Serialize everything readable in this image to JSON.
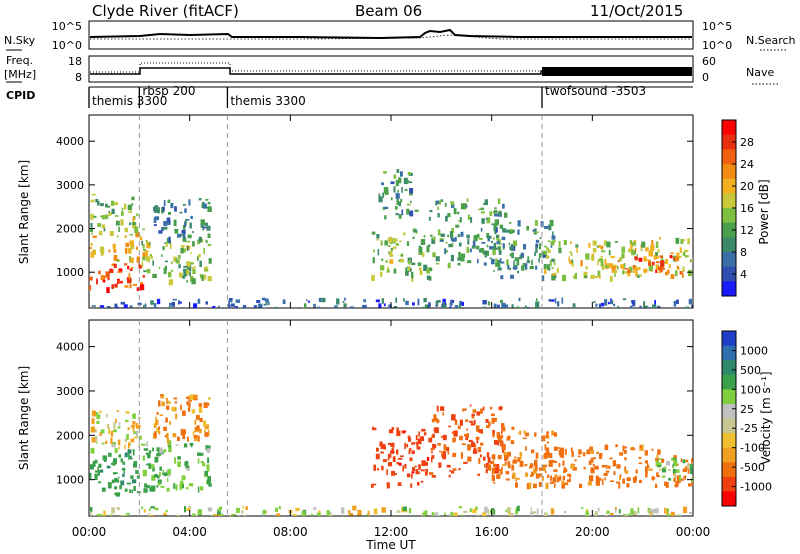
{
  "header": {
    "station": "Clyde River (fitACF)",
    "beam": "Beam 06",
    "date": "11/Oct/2015"
  },
  "summary": {
    "nsky_label": "N.Sky",
    "nsky_ticks": [
      "10^5",
      "10^0"
    ],
    "nsearch_label": "N.Search",
    "nsearch_ticks": [
      "10^5",
      "10^0"
    ],
    "freq_label_1": "Freq.",
    "freq_label_2": "[MHz]",
    "freq_ticks": [
      "18",
      "8"
    ],
    "nave_label": "Nave",
    "nave_ticks": [
      "60",
      "0"
    ],
    "cpid_label": "CPID"
  },
  "cpid_segments": [
    {
      "label": "themis 3300",
      "start": 0,
      "end": 2
    },
    {
      "label": "rbsp 200",
      "start": 2,
      "end": 5.5
    },
    {
      "label": "themis 3300",
      "start": 5.5,
      "end": 18
    },
    {
      "label": "twofsound -3503",
      "start": 18,
      "end": 24
    }
  ],
  "chart_data": [
    {
      "type": "heatmap",
      "name": "power-panel",
      "xlabel": "",
      "ylabel": "Slant Range [km]",
      "xlim": [
        0,
        24
      ],
      "ylim": [
        180,
        4600
      ],
      "yticks": [
        1000,
        2000,
        3000,
        4000
      ],
      "colorbar": {
        "label": "Power [dB]",
        "range": [
          0,
          32
        ],
        "ticks": [
          "4",
          "8",
          "12",
          "16",
          "20",
          "24",
          "28"
        ],
        "colors": [
          "#1a1aff",
          "#2e4fb0",
          "#3a6fa8",
          "#3d8a6a",
          "#4aa04a",
          "#7fbf3f",
          "#c8c83a",
          "#f0b020",
          "#f08a10",
          "#f06010",
          "#e83010",
          "#ff0000"
        ]
      },
      "regions": [
        {
          "x0": 0.0,
          "x1": 2.2,
          "y0": 650,
          "y1": 1300,
          "value": 27
        },
        {
          "x0": 0.0,
          "x1": 2.3,
          "y0": 1300,
          "y1": 2000,
          "value": 19
        },
        {
          "x0": 0.0,
          "x1": 2.0,
          "y0": 2000,
          "y1": 2800,
          "value": 14
        },
        {
          "x0": 2.0,
          "x1": 4.8,
          "y0": 800,
          "y1": 1800,
          "value": 14
        },
        {
          "x0": 2.5,
          "x1": 4.8,
          "y0": 1800,
          "y1": 2700,
          "value": 8
        },
        {
          "x0": 11.2,
          "x1": 13.5,
          "y0": 900,
          "y1": 2000,
          "value": 14
        },
        {
          "x0": 11.5,
          "x1": 13.0,
          "y0": 2300,
          "y1": 3400,
          "value": 9
        },
        {
          "x0": 13.5,
          "x1": 16.5,
          "y0": 1200,
          "y1": 2700,
          "value": 11
        },
        {
          "x0": 16.0,
          "x1": 18.5,
          "y0": 900,
          "y1": 2200,
          "value": 10
        },
        {
          "x0": 18.0,
          "x1": 24.0,
          "y0": 900,
          "y1": 1800,
          "value": 17
        },
        {
          "x0": 21.0,
          "x1": 23.5,
          "y0": 1000,
          "y1": 1400,
          "value": 25
        },
        {
          "x0": 0.0,
          "x1": 24.0,
          "y0": 180,
          "y1": 420,
          "value": 6
        }
      ]
    },
    {
      "type": "heatmap",
      "name": "velocity-panel",
      "xlabel": "Time UT",
      "ylabel": "Slant Range [km]",
      "xlim": [
        0,
        24
      ],
      "ylim": [
        180,
        4600
      ],
      "xticks": [
        "00:00",
        "04:00",
        "08:00",
        "12:00",
        "16:00",
        "20:00",
        "00:00"
      ],
      "yticks": [
        1000,
        2000,
        3000,
        4000
      ],
      "colorbar": {
        "label": "Velocity [m s⁻¹]",
        "ticks": [
          "1000",
          "500",
          "100",
          "25",
          "-25",
          "-100",
          "-500",
          "-1000"
        ],
        "colors": [
          "#1f3fc8",
          "#2f6fb0",
          "#2e8a6a",
          "#3aa04a",
          "#7fcf3f",
          "#c0c0c0",
          "#c8c890",
          "#f0c030",
          "#f0a020",
          "#f07010",
          "#f04010",
          "#ff0000"
        ]
      },
      "regions": [
        {
          "x0": 0.0,
          "x1": 2.2,
          "y0": 700,
          "y1": 1700,
          "value": 300
        },
        {
          "x0": 0.0,
          "x1": 2.2,
          "y0": 1700,
          "y1": 2600,
          "value": 0
        },
        {
          "x0": 2.0,
          "x1": 4.8,
          "y0": 800,
          "y1": 1900,
          "value": 150
        },
        {
          "x0": 2.5,
          "x1": 4.8,
          "y0": 1900,
          "y1": 3000,
          "value": -150
        },
        {
          "x0": 11.2,
          "x1": 13.5,
          "y0": 900,
          "y1": 2200,
          "value": -600
        },
        {
          "x0": 13.5,
          "x1": 16.5,
          "y0": 1100,
          "y1": 2700,
          "value": -400
        },
        {
          "x0": 16.0,
          "x1": 18.5,
          "y0": 900,
          "y1": 2200,
          "value": -200
        },
        {
          "x0": 18.0,
          "x1": 24.0,
          "y0": 900,
          "y1": 1800,
          "value": -250
        },
        {
          "x0": 22.5,
          "x1": 24.0,
          "y0": 1000,
          "y1": 1500,
          "value": 120
        },
        {
          "x0": 0.0,
          "x1": 24.0,
          "y0": 180,
          "y1": 420,
          "value": 40
        }
      ]
    }
  ]
}
